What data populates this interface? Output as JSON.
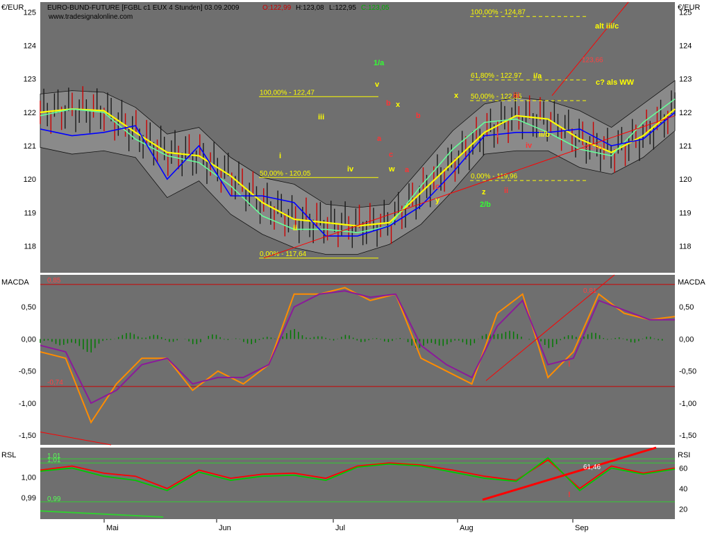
{
  "header": {
    "title": "EURO-BUND-FUTURE [FGBL c1 EUX  4 Stunden] 03.09.2009",
    "open": "O:122,99",
    "high": "H:123,08",
    "low": "L:122,95",
    "close": "C:123,05",
    "website": "www.tradesignalonline.com"
  },
  "colors": {
    "panel_bg": "#6f6f6f",
    "frame_bg": "#ffffff",
    "price_yellow": "#ffff00",
    "price_green": "#66ff99",
    "price_blue": "#0000ff",
    "bands_fill": "#8a8a8a",
    "trend_red": "#ff0000",
    "macd_orange": "#ff8c00",
    "macd_purple": "#8b1a9a",
    "hist_green": "#007a00",
    "rsi_green": "#00c800",
    "rsi_red": "#ff0000",
    "wave_green": "#33ff33"
  },
  "chart_data": [
    {
      "type": "line",
      "panel": "price",
      "ylabel": "€/EUR",
      "ylim": [
        117.2,
        125.3
      ],
      "y_ticks": [
        "125",
        "124",
        "123",
        "122",
        "121",
        "120",
        "119",
        "118"
      ],
      "x_ticks": [
        "Mai",
        "Jun",
        "Jul",
        "Aug",
        "Sep"
      ],
      "series": [
        {
          "color": "#ffff00",
          "x": [
            0,
            5,
            10,
            15,
            20,
            25,
            30,
            35,
            40,
            45,
            50,
            55,
            60,
            65,
            70,
            75,
            80,
            85,
            90,
            95,
            100
          ],
          "values": [
            122.0,
            122.1,
            122.05,
            121.4,
            120.8,
            120.7,
            120.1,
            119.3,
            118.8,
            118.7,
            118.6,
            118.7,
            119.6,
            120.5,
            121.4,
            121.9,
            121.8,
            121.2,
            120.8,
            121.3,
            122.1
          ]
        },
        {
          "color": "#66ff99",
          "x": [
            0,
            5,
            10,
            15,
            20,
            25,
            30,
            35,
            40,
            45,
            50,
            55,
            60,
            65,
            70,
            75,
            80,
            85,
            90,
            95,
            100
          ],
          "values": [
            121.9,
            122.1,
            122.0,
            121.2,
            120.7,
            120.5,
            119.8,
            118.9,
            118.5,
            118.5,
            118.4,
            118.6,
            119.8,
            120.9,
            121.7,
            121.8,
            121.4,
            120.9,
            120.7,
            121.7,
            122.4
          ]
        },
        {
          "color": "#0000ff",
          "x": [
            0,
            5,
            10,
            15,
            20,
            25,
            30,
            35,
            40,
            45,
            50,
            55,
            60,
            65,
            70,
            75,
            80,
            85,
            90,
            95,
            100
          ],
          "values": [
            121.5,
            121.3,
            121.4,
            121.6,
            120.0,
            121.0,
            119.5,
            119.5,
            119.3,
            118.3,
            118.3,
            118.6,
            119.2,
            120.2,
            121.3,
            121.4,
            121.4,
            121.5,
            121.0,
            121.2,
            122.0
          ]
        }
      ],
      "horizontal_levels": [
        {
          "label": "100,00% - 122,47",
          "value": 122.47
        },
        {
          "label": "50,00% - 120,05",
          "value": 120.05
        },
        {
          "label": "0,00% - 117,64",
          "value": 117.64
        },
        {
          "label": "100,00% - 124,87",
          "value": 124.87
        },
        {
          "label": "61,80% - 122,97",
          "value": 122.97
        },
        {
          "label": "50,00% - 122,35",
          "value": 122.35
        },
        {
          "label": "0,00% - 119,96",
          "value": 119.96
        }
      ],
      "trend_labels": [
        "123,66",
        "121,01"
      ],
      "wave_labels": [
        "1/a",
        "v",
        "iii",
        "i",
        "iv",
        "ii",
        "b",
        "x",
        "a",
        "c",
        "w",
        "a",
        "c",
        "y",
        "b",
        "x",
        "z",
        "2/b",
        "ii",
        "i",
        "iii",
        "iv",
        "ii/b",
        "i/a",
        "alt iii/c",
        "c? als WW"
      ]
    },
    {
      "type": "line",
      "panel": "macd",
      "ylabel": "MACDA",
      "ylim": [
        -1.65,
        1.0
      ],
      "y_ticks": [
        "0,50",
        "0,00",
        "-0,50",
        "-1,00",
        "-1,50"
      ],
      "reference_lines": [
        {
          "label": "0,85",
          "value": 0.85
        },
        {
          "label": "-0,74",
          "value": -0.74
        }
      ],
      "trend_label": "0,81",
      "marker": "!",
      "series": [
        {
          "color": "#ff8c00",
          "x": [
            0,
            4,
            8,
            12,
            16,
            20,
            24,
            28,
            32,
            36,
            40,
            44,
            48,
            52,
            56,
            60,
            64,
            68,
            72,
            76,
            80,
            84,
            88,
            92,
            96,
            100
          ],
          "values": [
            -0.2,
            -0.3,
            -1.3,
            -0.7,
            -0.3,
            -0.3,
            -0.8,
            -0.5,
            -0.7,
            -0.4,
            0.7,
            0.7,
            0.8,
            0.6,
            0.7,
            -0.3,
            -0.5,
            -0.7,
            0.4,
            0.7,
            -0.6,
            -0.2,
            0.7,
            0.4,
            0.3,
            0.35
          ]
        },
        {
          "color": "#8b1a9a",
          "x": [
            0,
            4,
            8,
            12,
            16,
            20,
            24,
            28,
            32,
            36,
            40,
            44,
            48,
            52,
            56,
            60,
            64,
            68,
            72,
            76,
            80,
            84,
            88,
            92,
            96,
            100
          ],
          "values": [
            -0.1,
            -0.2,
            -1.0,
            -0.8,
            -0.4,
            -0.3,
            -0.7,
            -0.6,
            -0.6,
            -0.4,
            0.5,
            0.7,
            0.75,
            0.65,
            0.7,
            -0.1,
            -0.4,
            -0.6,
            0.2,
            0.6,
            -0.4,
            -0.3,
            0.6,
            0.45,
            0.3,
            0.3
          ]
        }
      ]
    },
    {
      "type": "line",
      "panel": "rsi",
      "ylabel": "RSL",
      "left_ticks": [
        "1,00",
        "0,99"
      ],
      "right_label": "RSI",
      "right_ticks": [
        "60",
        "40",
        "20"
      ],
      "right_ylim": [
        10,
        80
      ],
      "levels": [
        {
          "label": "1,01",
          "value": 69
        },
        {
          "label": "1,01",
          "value": 65
        },
        {
          "label": "0,99",
          "value": 27
        }
      ],
      "value_label": "61,46",
      "marker": "!",
      "series": [
        {
          "color": "#ff0000",
          "x": [
            0,
            5,
            10,
            15,
            20,
            25,
            30,
            35,
            40,
            45,
            50,
            55,
            60,
            65,
            70,
            75,
            80,
            85,
            90,
            95,
            100
          ],
          "values": [
            58,
            62,
            55,
            52,
            40,
            58,
            50,
            54,
            55,
            50,
            62,
            65,
            63,
            58,
            52,
            48,
            68,
            40,
            62,
            55,
            60
          ]
        },
        {
          "color": "#00c800",
          "x": [
            0,
            5,
            10,
            15,
            20,
            25,
            30,
            35,
            40,
            45,
            50,
            55,
            60,
            65,
            70,
            75,
            80,
            85,
            90,
            95,
            100
          ],
          "values": [
            57,
            60,
            52,
            48,
            38,
            56,
            48,
            52,
            53,
            48,
            61,
            64,
            62,
            56,
            50,
            47,
            70,
            38,
            60,
            54,
            59
          ]
        }
      ]
    }
  ]
}
